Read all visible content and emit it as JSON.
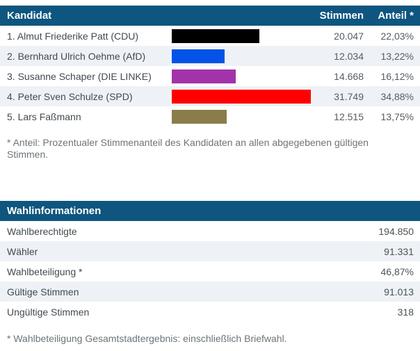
{
  "colors": {
    "header_bg": "#0e567f",
    "header_text": "#ffffff",
    "alt_row_bg": "#eef2f6",
    "row_text": "#424a50",
    "number_text": "#555c62",
    "footnote_text": "#6d7479",
    "bar_cdu": "#000000",
    "bar_afd": "#0453e8",
    "bar_linke": "#a233a8",
    "bar_spd": "#fe0000",
    "bar_independent": "#8a7d4a"
  },
  "candidate_table": {
    "header": {
      "candidate": "Kandidat",
      "votes": "Stimmen",
      "share": "Anteil *"
    },
    "rows": [
      {
        "name": "1. Almut Friederike Patt (CDU)",
        "votes": "20.047",
        "share": "22,03%",
        "percent": 22.03,
        "bar_color": "#000000"
      },
      {
        "name": "2. Bernhard Ulrich Oehme (AfD)",
        "votes": "12.034",
        "share": "13,22%",
        "percent": 13.22,
        "bar_color": "#0453e8"
      },
      {
        "name": "3. Susanne Schaper (DIE LINKE)",
        "votes": "14.668",
        "share": "16,12%",
        "percent": 16.12,
        "bar_color": "#a233a8"
      },
      {
        "name": "4. Peter Sven Schulze (SPD)",
        "votes": "31.749",
        "share": "34,88%",
        "percent": 34.88,
        "bar_color": "#fe0000"
      },
      {
        "name": "5. Lars Faßmann",
        "votes": "12.515",
        "share": "13,75%",
        "percent": 13.75,
        "bar_color": "#8a7d4a"
      }
    ],
    "footnote": "* Anteil: Prozentualer Stimmenanteil des Kandidaten an allen abgegebenen gültigen Stimmen."
  },
  "info_table": {
    "header": "Wahlinformationen",
    "rows": [
      {
        "label": "Wahlberechtigte",
        "value": "194.850"
      },
      {
        "label": "Wähler",
        "value": "91.331"
      },
      {
        "label": "Wahlbeteiligung *",
        "value": "46,87%"
      },
      {
        "label": "Gültige Stimmen",
        "value": "91.013"
      },
      {
        "label": "Ungültige Stimmen",
        "value": "318"
      }
    ],
    "footnote": "* Wahlbeteiligung Gesamtstadtergebnis: einschließlich Briefwahl."
  },
  "chart_data": {
    "type": "bar",
    "title": "Kandidat",
    "categories": [
      "1. Almut Friederike Patt (CDU)",
      "2. Bernhard Ulrich Oehme (AfD)",
      "3. Susanne Schaper (DIE LINKE)",
      "4. Peter Sven Schulze (SPD)",
      "5. Lars Faßmann"
    ],
    "series": [
      {
        "name": "Stimmen",
        "values": [
          20047,
          12034,
          14668,
          31749,
          12515
        ]
      },
      {
        "name": "Anteil (%)",
        "values": [
          22.03,
          13.22,
          16.12,
          34.88,
          13.75
        ]
      }
    ],
    "bar_colors": [
      "#000000",
      "#0453e8",
      "#a233a8",
      "#fe0000",
      "#8a7d4a"
    ],
    "orientation": "horizontal",
    "xlim_percent": [
      0,
      35.1
    ],
    "legend": "none",
    "grid": false,
    "extra_table": {
      "title": "Wahlinformationen",
      "rows": [
        [
          "Wahlberechtigte",
          "194.850"
        ],
        [
          "Wähler",
          "91.331"
        ],
        [
          "Wahlbeteiligung *",
          "46,87%"
        ],
        [
          "Gültige Stimmen",
          "91.013"
        ],
        [
          "Ungültige Stimmen",
          "318"
        ]
      ]
    }
  }
}
